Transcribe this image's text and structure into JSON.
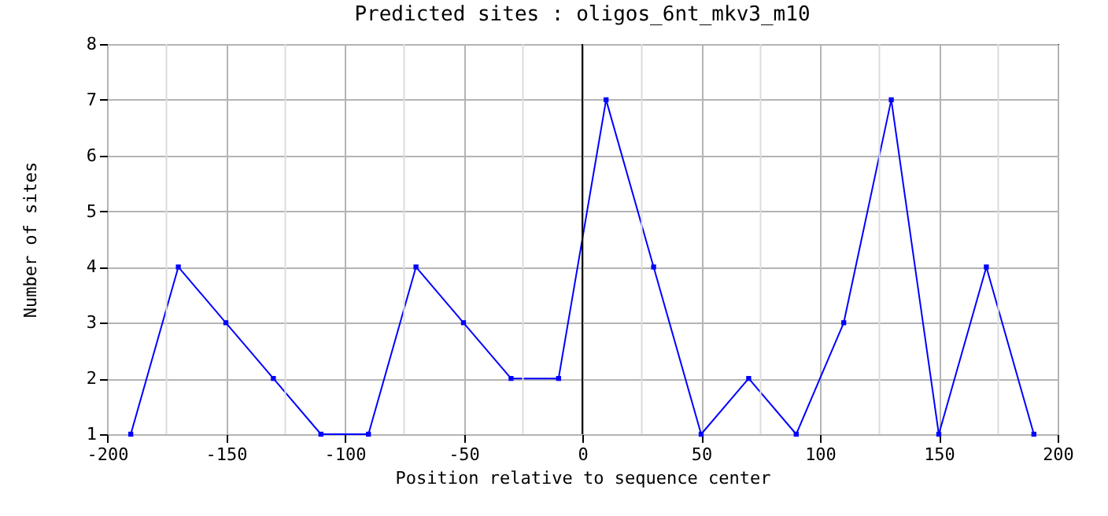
{
  "chart_data": {
    "type": "line",
    "title": "Predicted sites : oligos_6nt_mkv3_m10",
    "xlabel": "Position relative to sequence center",
    "ylabel": "Number of sites",
    "x": [
      -190,
      -170,
      -150,
      -130,
      -110,
      -90,
      -70,
      -50,
      -30,
      -10,
      10,
      30,
      50,
      70,
      90,
      110,
      130,
      150,
      170,
      190
    ],
    "series": [
      {
        "color": "#0000ff",
        "values": [
          1,
          4,
          3,
          2,
          1,
          1,
          4,
          3,
          2,
          2,
          7,
          4,
          1,
          2,
          1,
          3,
          7,
          1,
          4,
          1
        ]
      }
    ],
    "xlim": [
      -200,
      200
    ],
    "xticks": [
      -200,
      {
        "value": -175,
        "label": null
      },
      -150,
      {
        "value": -125,
        "label": null
      },
      -100,
      {
        "value": -75,
        "label": null
      },
      -50,
      {
        "value": -25,
        "label": null
      },
      0,
      {
        "value": 25,
        "label": null
      },
      50,
      {
        "value": 75,
        "label": null
      },
      100,
      {
        "value": 125,
        "label": null
      },
      150,
      {
        "value": 175,
        "label": null
      },
      200
    ],
    "ylim": [
      1,
      8
    ],
    "yticks": [
      1,
      2,
      3,
      4,
      5,
      6,
      7,
      8
    ],
    "ref_lines": [
      {
        "axis": "x",
        "value": 0,
        "color": "#000000"
      }
    ],
    "grid": true,
    "marker": "square",
    "line_style": "solid"
  }
}
